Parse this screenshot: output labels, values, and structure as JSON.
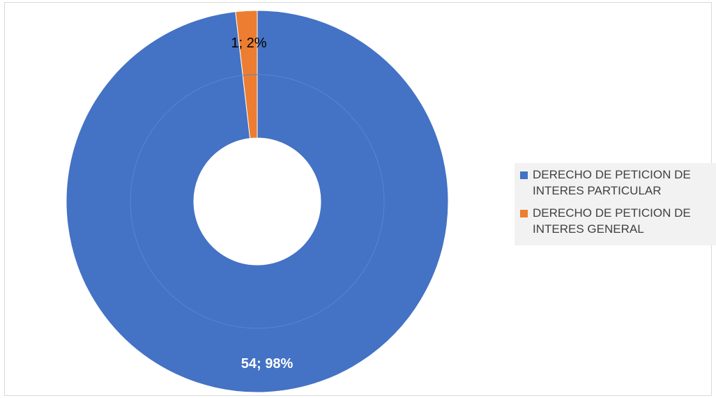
{
  "chart_data": {
    "type": "pie",
    "style": "donut",
    "title": "",
    "categories": [
      "DERECHO DE PETICION DE INTERES PARTICULAR",
      "DERECHO DE PETICION DE INTERES GENERAL"
    ],
    "series": [
      {
        "values": [
          54,
          1
        ],
        "colors": [
          "#4472c4",
          "#ed7d31"
        ]
      }
    ],
    "data_labels": [
      "54; 98%",
      "1; 2%"
    ],
    "label_colors": [
      "#ffffff",
      "#000000"
    ],
    "legend": {
      "position": "right",
      "entries": [
        "DERECHO DE PETICION DE INTERES PARTICULAR",
        "DERECHO DE PETICION DE INTERES GENERAL"
      ]
    }
  }
}
